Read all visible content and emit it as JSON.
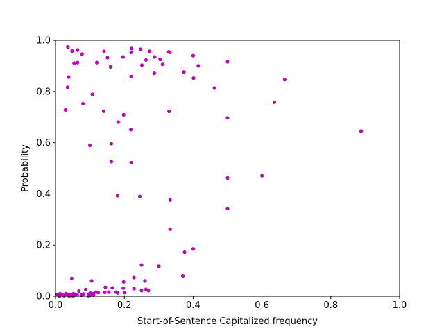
{
  "chart_data": {
    "type": "scatter",
    "title": "",
    "xlabel": "Start-of-Sentence Capitalized frequency",
    "ylabel": "Probability",
    "xlim": [
      0.0,
      1.0
    ],
    "ylim": [
      0.0,
      1.0
    ],
    "xticks": [
      "0.0",
      "0.2",
      "0.4",
      "0.6",
      "0.8",
      "1.0"
    ],
    "yticks": [
      "0.0",
      "0.2",
      "0.4",
      "0.6",
      "0.8",
      "1.0"
    ],
    "grid": false,
    "marker_color": "#bf00bf",
    "points": [
      [
        0.036,
        0.974
      ],
      [
        0.048,
        0.958
      ],
      [
        0.064,
        0.962
      ],
      [
        0.077,
        0.946
      ],
      [
        0.141,
        0.957
      ],
      [
        0.151,
        0.932
      ],
      [
        0.196,
        0.935
      ],
      [
        0.221,
        0.968
      ],
      [
        0.22,
        0.953
      ],
      [
        0.247,
        0.965
      ],
      [
        0.274,
        0.957
      ],
      [
        0.329,
        0.955
      ],
      [
        0.332,
        0.953
      ],
      [
        0.288,
        0.935
      ],
      [
        0.263,
        0.923
      ],
      [
        0.054,
        0.911
      ],
      [
        0.064,
        0.913
      ],
      [
        0.12,
        0.913
      ],
      [
        0.16,
        0.896
      ],
      [
        0.251,
        0.903
      ],
      [
        0.304,
        0.925
      ],
      [
        0.311,
        0.906
      ],
      [
        0.4,
        0.94
      ],
      [
        0.415,
        0.9
      ],
      [
        0.5,
        0.916
      ],
      [
        0.287,
        0.871
      ],
      [
        0.373,
        0.876
      ],
      [
        0.401,
        0.852
      ],
      [
        0.22,
        0.858
      ],
      [
        0.038,
        0.856
      ],
      [
        0.035,
        0.816
      ],
      [
        0.107,
        0.789
      ],
      [
        0.08,
        0.752
      ],
      [
        0.029,
        0.728
      ],
      [
        0.14,
        0.723
      ],
      [
        0.33,
        0.722
      ],
      [
        0.462,
        0.813
      ],
      [
        0.666,
        0.846
      ],
      [
        0.636,
        0.758
      ],
      [
        0.5,
        0.697
      ],
      [
        0.198,
        0.709
      ],
      [
        0.182,
        0.68
      ],
      [
        0.219,
        0.651
      ],
      [
        0.888,
        0.645
      ],
      [
        0.1,
        0.589
      ],
      [
        0.162,
        0.596
      ],
      [
        0.162,
        0.526
      ],
      [
        0.22,
        0.522
      ],
      [
        0.18,
        0.393
      ],
      [
        0.245,
        0.39
      ],
      [
        0.6,
        0.471
      ],
      [
        0.5,
        0.462
      ],
      [
        0.333,
        0.376
      ],
      [
        0.5,
        0.342
      ],
      [
        0.333,
        0.262
      ],
      [
        0.4,
        0.185
      ],
      [
        0.375,
        0.172
      ],
      [
        0.25,
        0.122
      ],
      [
        0.3,
        0.117
      ],
      [
        0.37,
        0.08
      ],
      [
        0.228,
        0.073
      ],
      [
        0.047,
        0.07
      ],
      [
        0.105,
        0.06
      ],
      [
        0.198,
        0.056
      ],
      [
        0.26,
        0.06
      ],
      [
        0.145,
        0.035
      ],
      [
        0.165,
        0.033
      ],
      [
        0.197,
        0.032
      ],
      [
        0.228,
        0.03
      ],
      [
        0.25,
        0.022
      ],
      [
        0.263,
        0.027
      ],
      [
        0.27,
        0.022
      ],
      [
        0.088,
        0.026
      ],
      [
        0.068,
        0.02
      ],
      [
        0.117,
        0.016
      ],
      [
        0.124,
        0.014
      ],
      [
        0.143,
        0.015
      ],
      [
        0.155,
        0.016
      ],
      [
        0.176,
        0.016
      ],
      [
        0.181,
        0.013
      ],
      [
        0.2,
        0.014
      ],
      [
        0.102,
        0.012
      ],
      [
        0.11,
        0.01
      ],
      [
        0.013,
        0.01
      ],
      [
        0.03,
        0.01
      ],
      [
        0.04,
        0.008
      ],
      [
        0.052,
        0.01
      ],
      [
        0.058,
        0.007
      ],
      [
        0.081,
        0.009
      ],
      [
        0.096,
        0.008
      ],
      [
        0.006,
        0.007
      ],
      [
        0.02,
        0.005
      ],
      [
        0.036,
        0.005
      ],
      [
        0.045,
        0.004
      ],
      [
        0.063,
        0.005
      ],
      [
        0.075,
        0.004
      ],
      [
        0.1,
        0.004
      ],
      [
        0.11,
        0.004
      ],
      [
        0.01,
        0.002
      ],
      [
        0.025,
        0.002
      ],
      [
        0.05,
        0.002
      ],
      [
        0.054,
        0.003
      ],
      [
        0.096,
        0.002
      ],
      [
        0.012,
        0.001
      ],
      [
        0.04,
        0.001
      ]
    ]
  }
}
